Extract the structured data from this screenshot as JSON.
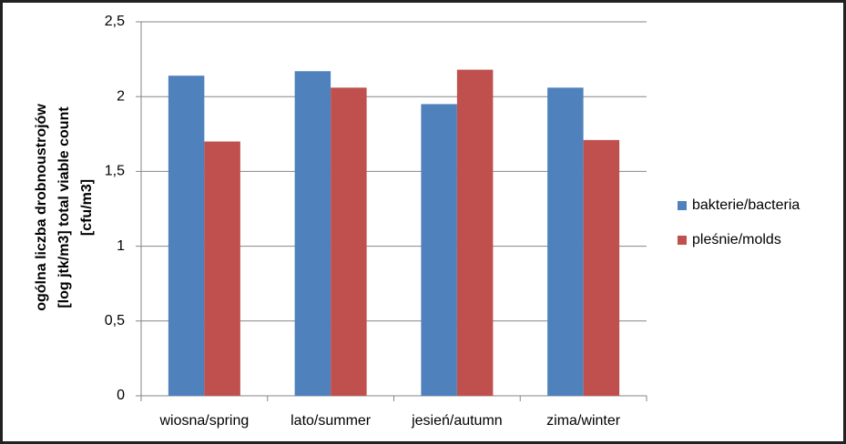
{
  "chart_data": {
    "type": "bar",
    "ylabel": [
      "ogólna liczba drobnoustrojów",
      "[log jtk/m3] total viable count",
      "[cfu/m3]"
    ],
    "categories": [
      "wiosna/spring",
      "lato/summer",
      "jesień/autumn",
      "zima/winter"
    ],
    "series": [
      {
        "name": "bakterie/bacteria",
        "color": "#4f81bd",
        "values": [
          2.14,
          2.17,
          1.95,
          2.06
        ]
      },
      {
        "name": "pleśnie/molds",
        "color": "#c0504d",
        "values": [
          1.7,
          2.06,
          2.18,
          1.71
        ]
      }
    ],
    "ylim": [
      0,
      2.5
    ],
    "yticks": [
      0,
      {
        "value": 0.5,
        "label": "0,5"
      },
      1,
      {
        "value": 1.5,
        "label": "1,5"
      },
      2,
      {
        "value": 2.5,
        "label": "2,5"
      }
    ],
    "grid": true,
    "legend": "right"
  }
}
